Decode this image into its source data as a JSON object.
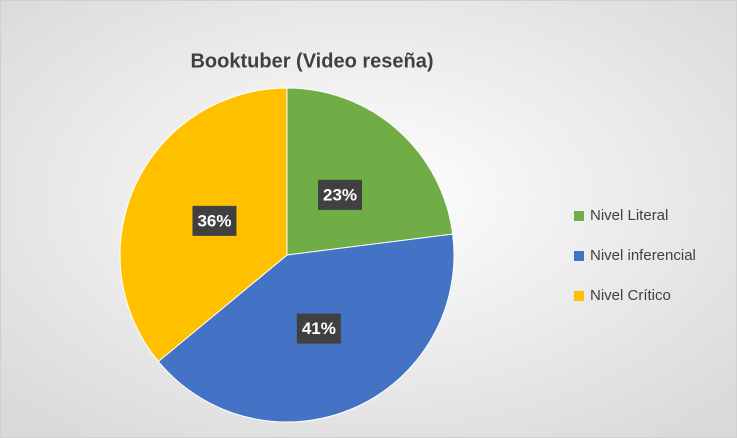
{
  "chart_data": {
    "type": "pie",
    "title": "Booktuber (Video reseña)",
    "categories": [
      "Nivel Literal",
      "Nivel inferencial",
      "Nivel Crítico"
    ],
    "values": [
      23,
      41,
      36
    ],
    "value_labels": [
      "23%",
      "41%",
      "36%"
    ],
    "colors": [
      "#70ad47",
      "#4472c4",
      "#ffc000"
    ],
    "legend": "right"
  }
}
